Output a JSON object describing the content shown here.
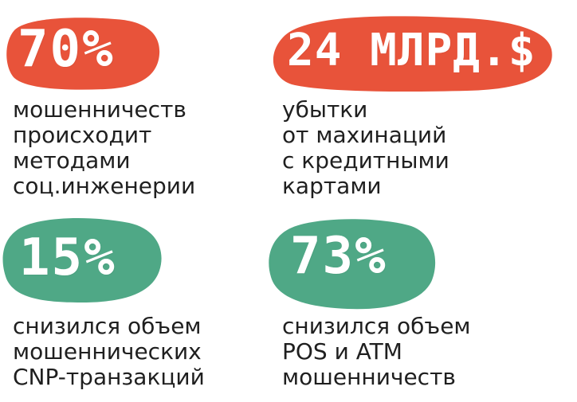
{
  "colors": {
    "orange": "#e8533a",
    "green": "#4fa886",
    "text": "#1f1f1f",
    "value_text": "#ffffff"
  },
  "stats": [
    {
      "value": "70%",
      "color": "orange",
      "lines": [
        "мошенничеств",
        "происходит",
        "методами",
        "соц.инженерии"
      ]
    },
    {
      "value": "24 МЛРД.$",
      "color": "orange",
      "lines": [
        "убытки",
        "от махинаций",
        "с кредитными",
        "картами"
      ]
    },
    {
      "value": "15%",
      "color": "green",
      "lines": [
        "снизился объем",
        "мошеннических",
        "CNP-транзакций"
      ]
    },
    {
      "value": "73%",
      "color": "green",
      "lines": [
        "снизился объем",
        "POS и ATM",
        "мошенничеств"
      ]
    }
  ]
}
